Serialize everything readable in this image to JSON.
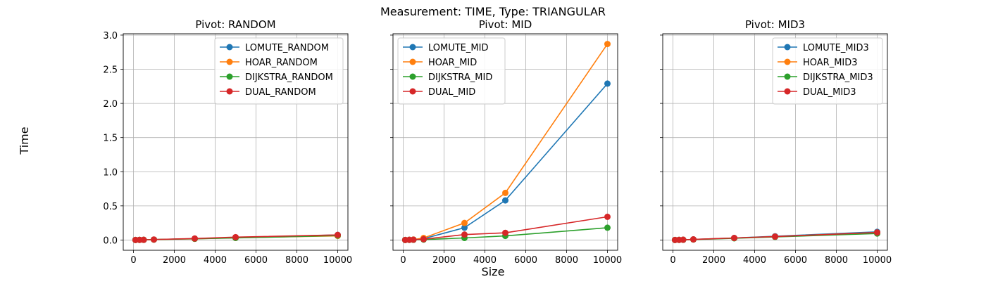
{
  "figure": {
    "suptitle": "Measurement: TIME, Type: TRIANGULAR",
    "xlabel": "Size",
    "ylabel": "Time"
  },
  "colors": {
    "blue": "#1f77b4",
    "orange": "#ff7f0e",
    "green": "#2ca02c",
    "red": "#d62728",
    "grid": "#b0b0b0"
  },
  "chart_data": [
    {
      "type": "line",
      "title": "Pivot: RANDOM",
      "xlim": [
        -500,
        10500
      ],
      "ylim": [
        -0.15,
        3.02
      ],
      "xticks": [
        0,
        2000,
        4000,
        6000,
        8000,
        10000
      ],
      "yticks": [
        0.0,
        0.5,
        1.0,
        1.5,
        2.0,
        2.5,
        3.0
      ],
      "ytick_labels": [
        "0.0",
        "0.5",
        "1.0",
        "1.5",
        "2.0",
        "2.5",
        "3.0"
      ],
      "show_yticklabels": true,
      "grid": true,
      "legend": "top-right",
      "x": [
        100,
        300,
        500,
        1000,
        3000,
        5000,
        10000
      ],
      "series": [
        {
          "name": "LOMUTE_RANDOM",
          "color": "#1f77b4",
          "values": [
            0.001,
            0.002,
            0.003,
            0.006,
            0.02,
            0.035,
            0.075
          ]
        },
        {
          "name": "HOAR_RANDOM",
          "color": "#ff7f0e",
          "values": [
            0.001,
            0.002,
            0.003,
            0.006,
            0.018,
            0.033,
            0.06
          ]
        },
        {
          "name": "DIJKSTRA_RANDOM",
          "color": "#2ca02c",
          "values": [
            0.001,
            0.002,
            0.003,
            0.006,
            0.018,
            0.03,
            0.065
          ]
        },
        {
          "name": "DUAL_RANDOM",
          "color": "#d62728",
          "values": [
            0.001,
            0.002,
            0.003,
            0.007,
            0.022,
            0.042,
            0.075
          ]
        }
      ]
    },
    {
      "type": "line",
      "title": "Pivot: MID",
      "xlim": [
        -500,
        10500
      ],
      "ylim": [
        -0.15,
        3.02
      ],
      "xticks": [
        0,
        2000,
        4000,
        6000,
        8000,
        10000
      ],
      "yticks": [
        0.0,
        0.5,
        1.0,
        1.5,
        2.0,
        2.5,
        3.0
      ],
      "ytick_labels": [
        "0.0",
        "0.5",
        "1.0",
        "1.5",
        "2.0",
        "2.5",
        "3.0"
      ],
      "show_yticklabels": false,
      "grid": true,
      "legend": "top-left",
      "x": [
        100,
        300,
        500,
        1000,
        3000,
        5000,
        10000
      ],
      "series": [
        {
          "name": "LOMUTE_MID",
          "color": "#1f77b4",
          "values": [
            0.001,
            0.003,
            0.006,
            0.02,
            0.18,
            0.58,
            2.29
          ]
        },
        {
          "name": "HOAR_MID",
          "color": "#ff7f0e",
          "values": [
            0.001,
            0.003,
            0.007,
            0.03,
            0.25,
            0.69,
            2.87
          ]
        },
        {
          "name": "DIJKSTRA_MID",
          "color": "#2ca02c",
          "values": [
            0.001,
            0.002,
            0.003,
            0.006,
            0.03,
            0.06,
            0.18
          ]
        },
        {
          "name": "DUAL_MID",
          "color": "#d62728",
          "values": [
            0.001,
            0.003,
            0.005,
            0.012,
            0.08,
            0.105,
            0.34
          ]
        }
      ]
    },
    {
      "type": "line",
      "title": "Pivot: MID3",
      "xlim": [
        -500,
        10500
      ],
      "ylim": [
        -0.15,
        3.02
      ],
      "xticks": [
        0,
        2000,
        4000,
        6000,
        8000,
        10000
      ],
      "yticks": [
        0.0,
        0.5,
        1.0,
        1.5,
        2.0,
        2.5,
        3.0
      ],
      "ytick_labels": [
        "0.0",
        "0.5",
        "1.0",
        "1.5",
        "2.0",
        "2.5",
        "3.0"
      ],
      "show_yticklabels": false,
      "grid": true,
      "legend": "top-right",
      "x": [
        100,
        300,
        500,
        1000,
        3000,
        5000,
        10000
      ],
      "series": [
        {
          "name": "LOMUTE_MID3",
          "color": "#1f77b4",
          "values": [
            0.001,
            0.002,
            0.004,
            0.009,
            0.03,
            0.055,
            0.12
          ]
        },
        {
          "name": "HOAR_MID3",
          "color": "#ff7f0e",
          "values": [
            0.001,
            0.002,
            0.004,
            0.008,
            0.028,
            0.05,
            0.11
          ]
        },
        {
          "name": "DIJKSTRA_MID3",
          "color": "#2ca02c",
          "values": [
            0.001,
            0.002,
            0.003,
            0.007,
            0.025,
            0.045,
            0.095
          ]
        },
        {
          "name": "DUAL_MID3",
          "color": "#d62728",
          "values": [
            0.001,
            0.002,
            0.004,
            0.009,
            0.03,
            0.05,
            0.11
          ]
        }
      ]
    }
  ]
}
